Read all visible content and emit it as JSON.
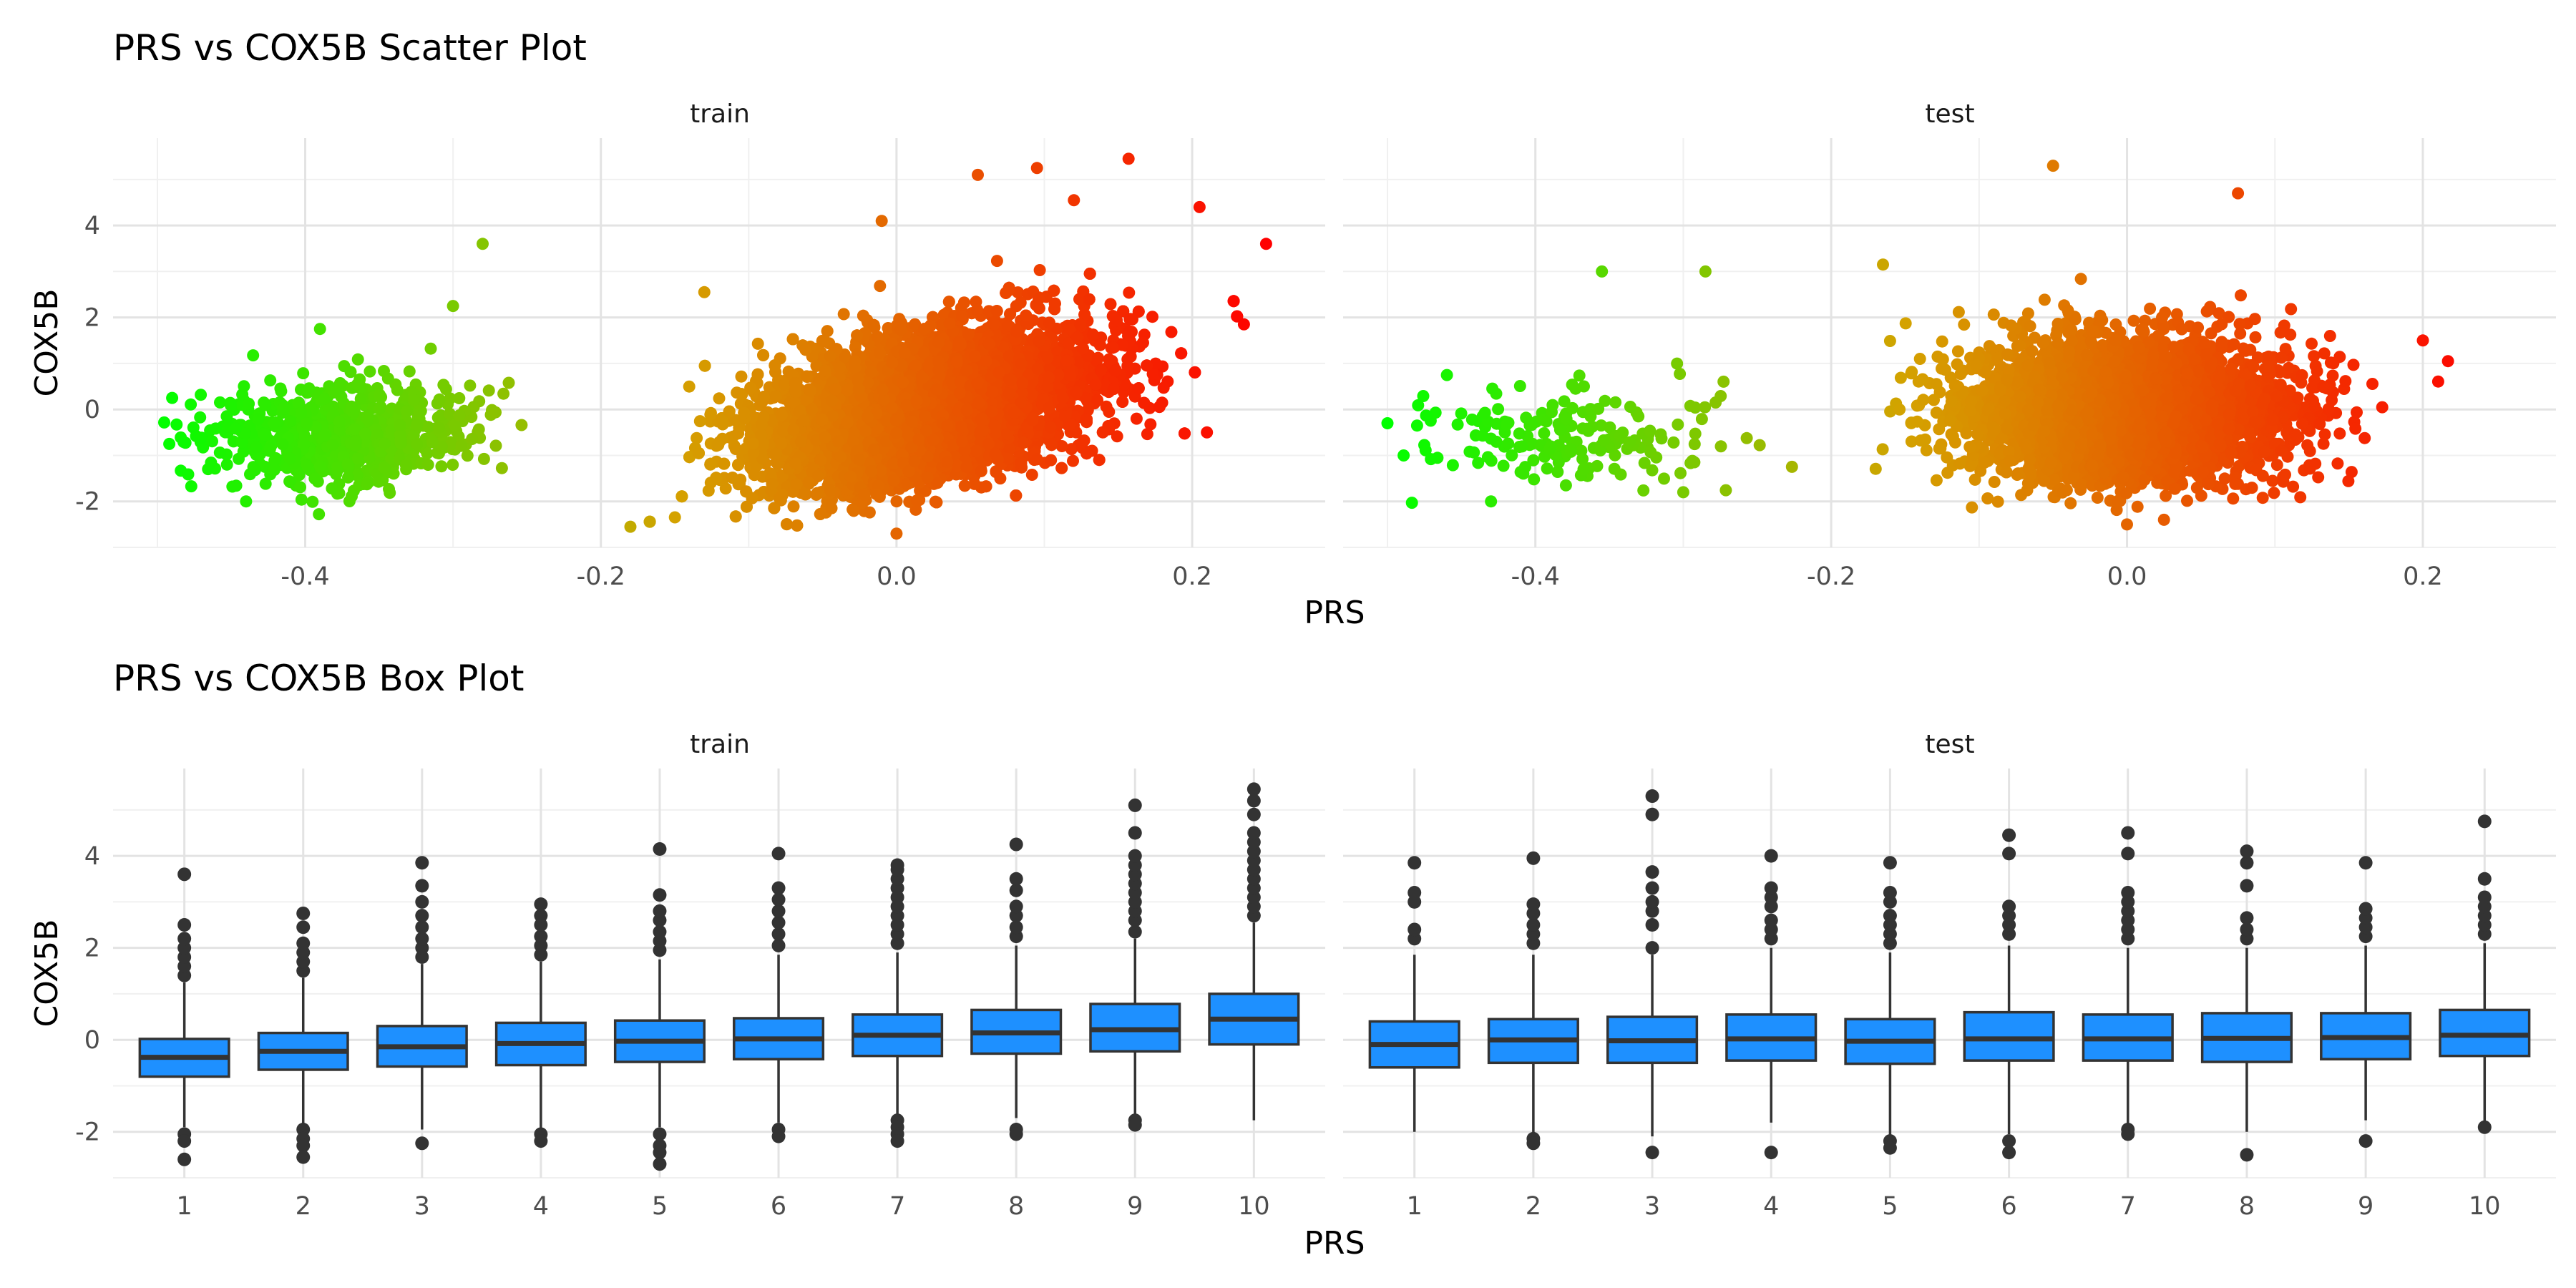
{
  "chart_data": [
    {
      "type": "scatter",
      "title": "PRS vs COX5B Scatter Plot",
      "xlabel": "PRS",
      "ylabel": "COX5B",
      "facets": [
        "train",
        "test"
      ],
      "xticks": [
        "-0.4",
        "-0.2",
        "0.0",
        "0.2"
      ],
      "yticks": [
        "-2",
        "0",
        "2",
        "4"
      ],
      "xlim": [
        -0.53,
        0.29
      ],
      "ylim": [
        -3.0,
        5.9
      ],
      "grid": true,
      "color_scale": {
        "low": "#00ff00",
        "mid": "#d4a200",
        "high": "#ff0000",
        "mapped_to": "PRS"
      },
      "panels": {
        "train": {
          "clusters": [
            {
              "x_range": [
                -0.5,
                -0.25
              ],
              "x_mean": -0.375,
              "x_sd": 0.045,
              "y_mean": -0.55,
              "y_sd": 0.55,
              "slope": 0.0,
              "approx_n": 700
            },
            {
              "x_range": [
                -0.2,
                0.25
              ],
              "x_mean": 0.02,
              "x_sd": 0.055,
              "y_mean": 0.05,
              "y_sd": 0.75,
              "slope": 6.5,
              "approx_n": 9000
            }
          ],
          "outliers": [
            [
              -0.28,
              3.6
            ],
            [
              0.25,
              3.6
            ],
            [
              0.157,
              5.45
            ],
            [
              0.095,
              5.25
            ],
            [
              0.055,
              5.1
            ],
            [
              0.205,
              4.4
            ],
            [
              0.235,
              1.85
            ],
            [
              0.21,
              -0.5
            ],
            [
              -0.3,
              2.25
            ],
            [
              -0.18,
              -2.55
            ],
            [
              0.0,
              -2.7
            ],
            [
              -0.49,
              0.25
            ],
            [
              -0.44,
              -2.0
            ],
            [
              -0.39,
              1.75
            ],
            [
              -0.13,
              2.55
            ],
            [
              -0.01,
              4.1
            ],
            [
              0.12,
              4.55
            ]
          ]
        },
        "test": {
          "clusters": [
            {
              "x_range": [
                -0.52,
                -0.22
              ],
              "x_mean": -0.37,
              "x_sd": 0.05,
              "y_mean": -0.5,
              "y_sd": 0.55,
              "slope": 0.0,
              "approx_n": 180
            },
            {
              "x_range": [
                -0.18,
                0.22
              ],
              "x_mean": 0.0,
              "x_sd": 0.055,
              "y_mean": 0.0,
              "y_sd": 0.75,
              "slope": 0.0,
              "approx_n": 3500
            }
          ],
          "outliers": [
            [
              -0.5,
              -0.3
            ],
            [
              -0.48,
              -0.35
            ],
            [
              -0.355,
              3.0
            ],
            [
              -0.285,
              3.0
            ],
            [
              -0.43,
              -2.0
            ],
            [
              -0.165,
              3.15
            ],
            [
              -0.05,
              5.3
            ],
            [
              0.075,
              4.7
            ],
            [
              0.2,
              1.5
            ],
            [
              0.217,
              1.05
            ],
            [
              -0.3,
              -1.8
            ],
            [
              0.0,
              -2.5
            ],
            [
              0.025,
              -2.4
            ]
          ]
        }
      }
    },
    {
      "type": "box",
      "title": "PRS vs COX5B Box Plot",
      "xlabel": "PRS",
      "ylabel": "COX5B",
      "facets": [
        "train",
        "test"
      ],
      "categories": [
        "1",
        "2",
        "3",
        "4",
        "5",
        "6",
        "7",
        "8",
        "9",
        "10"
      ],
      "yticks": [
        "-2",
        "0",
        "2",
        "4"
      ],
      "ylim": [
        -3.0,
        5.9
      ],
      "fill": "#1e90ff",
      "grid": true,
      "panels": {
        "train": {
          "boxes": [
            {
              "q1": -0.8,
              "median": -0.38,
              "q3": 0.02,
              "wlo": -1.9,
              "whi": 1.25,
              "outliers": [
                1.4,
                1.6,
                1.8,
                2.0,
                2.2,
                2.5,
                3.6,
                -2.05,
                -2.2,
                -2.6
              ]
            },
            {
              "q1": -0.65,
              "median": -0.25,
              "q3": 0.15,
              "wlo": -1.85,
              "whi": 1.35,
              "outliers": [
                1.5,
                1.7,
                1.9,
                2.1,
                2.45,
                2.75,
                -1.95,
                -2.15,
                -2.3,
                -2.55
              ]
            },
            {
              "q1": -0.58,
              "median": -0.15,
              "q3": 0.3,
              "wlo": -1.95,
              "whi": 1.65,
              "outliers": [
                1.8,
                2.0,
                2.2,
                2.45,
                2.7,
                3.0,
                3.35,
                3.85,
                -2.25
              ]
            },
            {
              "q1": -0.55,
              "median": -0.08,
              "q3": 0.37,
              "wlo": -1.95,
              "whi": 1.7,
              "outliers": [
                1.85,
                2.05,
                2.25,
                2.5,
                2.7,
                2.95,
                -2.05,
                -2.2
              ]
            },
            {
              "q1": -0.48,
              "median": -0.03,
              "q3": 0.42,
              "wlo": -1.9,
              "whi": 1.75,
              "outliers": [
                1.95,
                2.15,
                2.35,
                2.6,
                2.8,
                3.15,
                4.15,
                -2.05,
                -2.3,
                -2.45,
                -2.7
              ]
            },
            {
              "q1": -0.42,
              "median": 0.02,
              "q3": 0.47,
              "wlo": -1.8,
              "whi": 1.85,
              "outliers": [
                2.05,
                2.3,
                2.55,
                2.8,
                3.05,
                3.3,
                4.05,
                -1.95,
                -2.1
              ]
            },
            {
              "q1": -0.35,
              "median": 0.1,
              "q3": 0.55,
              "wlo": -1.65,
              "whi": 1.9,
              "outliers": [
                2.1,
                2.3,
                2.5,
                2.7,
                2.9,
                3.1,
                3.3,
                3.5,
                3.7,
                3.8,
                -1.75,
                -1.9,
                -2.05,
                -2.2
              ]
            },
            {
              "q1": -0.3,
              "median": 0.15,
              "q3": 0.65,
              "wlo": -1.7,
              "whi": 2.05,
              "outliers": [
                2.25,
                2.45,
                2.7,
                2.9,
                3.25,
                3.5,
                4.25,
                -1.95,
                -2.05
              ]
            },
            {
              "q1": -0.25,
              "median": 0.22,
              "q3": 0.78,
              "wlo": -1.7,
              "whi": 2.2,
              "outliers": [
                2.35,
                2.6,
                2.8,
                3.0,
                3.2,
                3.4,
                3.6,
                3.8,
                4.0,
                4.5,
                5.1,
                -1.75,
                -1.85
              ]
            },
            {
              "q1": -0.1,
              "median": 0.45,
              "q3": 1.0,
              "wlo": -1.75,
              "whi": 2.55,
              "outliers": [
                2.7,
                2.9,
                3.1,
                3.3,
                3.5,
                3.7,
                3.9,
                4.1,
                4.3,
                4.5,
                4.9,
                5.2,
                5.45
              ]
            }
          ]
        },
        "test": {
          "boxes": [
            {
              "q1": -0.6,
              "median": -0.1,
              "q3": 0.4,
              "wlo": -2.0,
              "whi": 1.85,
              "outliers": [
                2.2,
                2.4,
                3.0,
                3.2,
                3.85
              ]
            },
            {
              "q1": -0.5,
              "median": 0.0,
              "q3": 0.45,
              "wlo": -2.05,
              "whi": 1.85,
              "outliers": [
                2.1,
                2.3,
                2.5,
                2.75,
                2.95,
                3.95,
                -2.15,
                -2.25
              ]
            },
            {
              "q1": -0.5,
              "median": -0.02,
              "q3": 0.5,
              "wlo": -2.1,
              "whi": 1.85,
              "outliers": [
                2.0,
                2.5,
                2.8,
                3.0,
                3.3,
                3.65,
                4.9,
                5.3,
                -2.45
              ]
            },
            {
              "q1": -0.45,
              "median": 0.02,
              "q3": 0.55,
              "wlo": -1.8,
              "whi": 2.0,
              "outliers": [
                2.2,
                2.4,
                2.6,
                2.9,
                3.1,
                3.3,
                4.0,
                -2.45
              ]
            },
            {
              "q1": -0.52,
              "median": -0.03,
              "q3": 0.45,
              "wlo": -2.1,
              "whi": 1.9,
              "outliers": [
                2.1,
                2.3,
                2.5,
                2.7,
                3.0,
                3.2,
                3.85,
                -2.2,
                -2.35
              ]
            },
            {
              "q1": -0.45,
              "median": 0.02,
              "q3": 0.6,
              "wlo": -2.05,
              "whi": 2.05,
              "outliers": [
                2.3,
                2.5,
                2.7,
                2.9,
                4.05,
                4.45,
                -2.2,
                -2.45
              ]
            },
            {
              "q1": -0.45,
              "median": 0.02,
              "q3": 0.55,
              "wlo": -1.85,
              "whi": 2.0,
              "outliers": [
                2.2,
                2.4,
                2.6,
                2.8,
                3.0,
                3.2,
                4.05,
                4.5,
                -1.95,
                -2.05
              ]
            },
            {
              "q1": -0.48,
              "median": 0.03,
              "q3": 0.58,
              "wlo": -2.0,
              "whi": 2.0,
              "outliers": [
                2.2,
                2.4,
                2.65,
                3.35,
                3.85,
                4.1,
                -2.5
              ]
            },
            {
              "q1": -0.42,
              "median": 0.05,
              "q3": 0.58,
              "wlo": -1.75,
              "whi": 2.05,
              "outliers": [
                2.25,
                2.45,
                2.65,
                2.85,
                3.85,
                -2.2
              ]
            },
            {
              "q1": -0.35,
              "median": 0.1,
              "q3": 0.65,
              "wlo": -1.8,
              "whi": 2.1,
              "outliers": [
                2.3,
                2.5,
                2.7,
                2.9,
                3.1,
                3.5,
                4.75,
                -1.9
              ]
            }
          ]
        }
      }
    }
  ]
}
